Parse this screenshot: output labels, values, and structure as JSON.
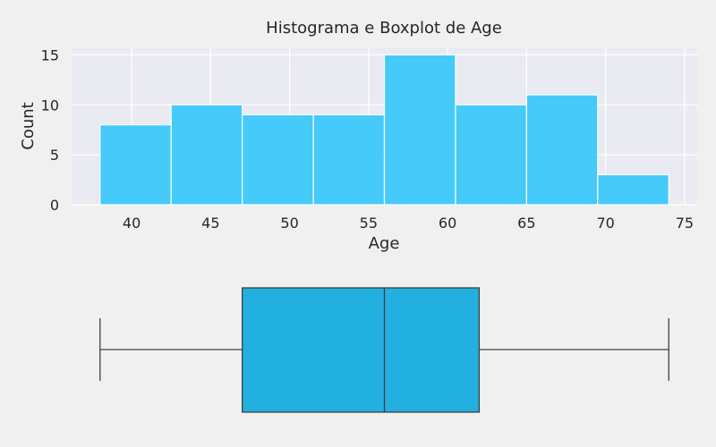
{
  "chart_data": [
    {
      "type": "bar",
      "title": "Histograma e Boxplot de Age",
      "xlabel": "Age",
      "ylabel": "Count",
      "xlim": [
        36.2,
        75.8
      ],
      "ylim": [
        0,
        15.75
      ],
      "xticks": [
        40,
        45,
        50,
        55,
        60,
        65,
        70,
        75
      ],
      "yticks": [
        0,
        5,
        10,
        15
      ],
      "grid": true,
      "bins": [
        {
          "x0": 38.0,
          "x1": 42.5,
          "count": 8
        },
        {
          "x0": 42.5,
          "x1": 47.0,
          "count": 10
        },
        {
          "x0": 47.0,
          "x1": 51.5,
          "count": 9
        },
        {
          "x0": 51.5,
          "x1": 56.0,
          "count": 9
        },
        {
          "x0": 56.0,
          "x1": 60.5,
          "count": 15
        },
        {
          "x0": 60.5,
          "x1": 65.0,
          "count": 10
        },
        {
          "x0": 65.0,
          "x1": 69.5,
          "count": 11
        },
        {
          "x0": 69.5,
          "x1": 74.0,
          "count": 3
        }
      ],
      "color": "#3cc8fa"
    },
    {
      "type": "box",
      "min": 38,
      "q1": 47,
      "median": 56,
      "q3": 62,
      "max": 74,
      "color": "#22b0e0"
    }
  ]
}
